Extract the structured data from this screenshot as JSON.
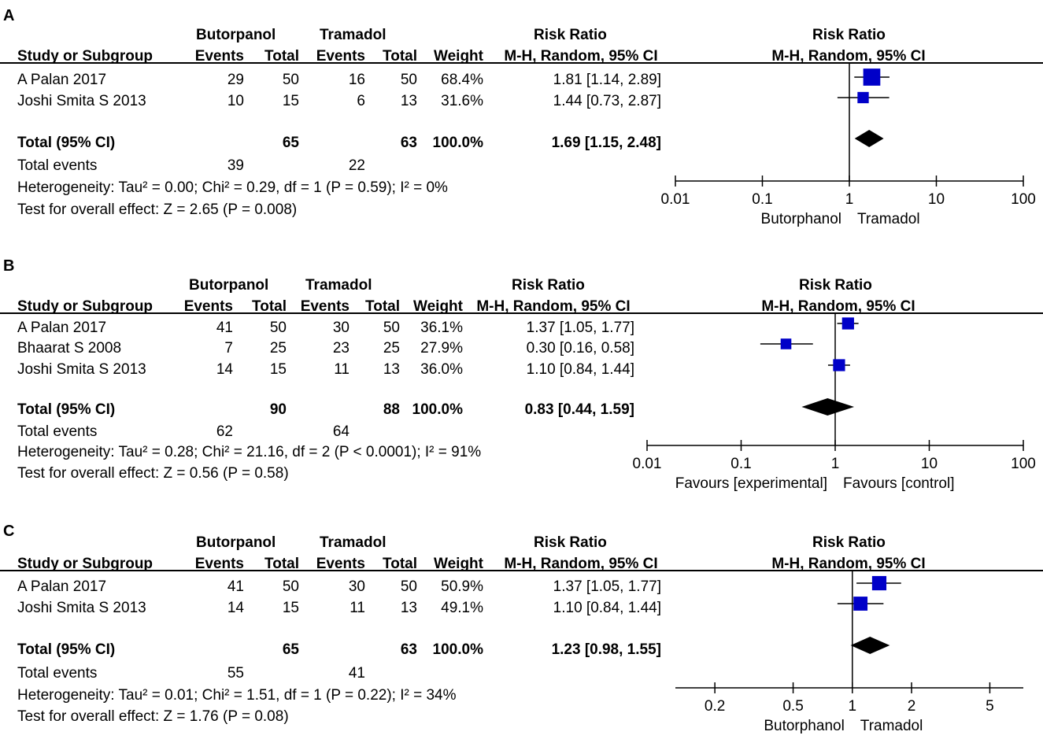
{
  "chart_data": [
    {
      "type": "forest",
      "panel_label": "A",
      "group1": "Butorpanol",
      "group2": "Tramadol",
      "col_study": "Study or Subgroup",
      "col_events": "Events",
      "col_total": "Total",
      "col_weight": "Weight",
      "col_rr_title": "Risk Ratio",
      "col_rr_sub": "M-H, Random, 95% CI",
      "plot_title": "Risk Ratio",
      "plot_sub": "M-H, Random, 95% CI",
      "studies": [
        {
          "name": "A Palan 2017",
          "e1": "29",
          "n1": "50",
          "e2": "16",
          "n2": "50",
          "weight": "68.4%",
          "ci": "1.81 [1.14, 2.89]",
          "rr": 1.81,
          "lo": 1.14,
          "hi": 2.89,
          "w": 68.4
        },
        {
          "name": "Joshi Smita S 2013",
          "e1": "10",
          "n1": "15",
          "e2": "6",
          "n2": "13",
          "weight": "31.6%",
          "ci": "1.44 [0.73, 2.87]",
          "rr": 1.44,
          "lo": 0.73,
          "hi": 2.87,
          "w": 31.6
        }
      ],
      "total": {
        "label": "Total (95% CI)",
        "n1": "65",
        "n2": "63",
        "weight": "100.0%",
        "ci": "1.69 [1.15, 2.48]",
        "rr": 1.69,
        "lo": 1.15,
        "hi": 2.48
      },
      "events": {
        "label": "Total events",
        "e1": "39",
        "e2": "22"
      },
      "heterogeneity": "Heterogeneity: Tau² = 0.00; Chi² = 0.29, df = 1 (P = 0.59); I² = 0%",
      "overall": "Test for overall effect: Z = 2.65 (P = 0.008)",
      "axis_ticks": [
        0.01,
        0.1,
        1,
        10,
        100
      ],
      "axis_tick_labels": [
        "0.01",
        "0.1",
        "1",
        "10",
        "100"
      ],
      "axis_range": [
        0.01,
        100
      ],
      "favours_left": "Butorphanol",
      "favours_right": "Tramadol"
    },
    {
      "type": "forest",
      "panel_label": "B",
      "group1": "Butorpanol",
      "group2": "Tramadol",
      "col_study": "Study or Subgroup",
      "col_events": "Events",
      "col_total": "Total",
      "col_weight": "Weight",
      "col_rr_title": "Risk Ratio",
      "col_rr_sub": "M-H, Random, 95% CI",
      "plot_title": "Risk Ratio",
      "plot_sub": "M-H, Random, 95% CI",
      "studies": [
        {
          "name": "A Palan 2017",
          "e1": "41",
          "n1": "50",
          "e2": "30",
          "n2": "50",
          "weight": "36.1%",
          "ci": "1.37 [1.05, 1.77]",
          "rr": 1.37,
          "lo": 1.05,
          "hi": 1.77,
          "w": 36.1
        },
        {
          "name": "Bhaarat S 2008",
          "e1": "7",
          "n1": "25",
          "e2": "23",
          "n2": "25",
          "weight": "27.9%",
          "ci": "0.30 [0.16, 0.58]",
          "rr": 0.3,
          "lo": 0.16,
          "hi": 0.58,
          "w": 27.9
        },
        {
          "name": "Joshi Smita S 2013",
          "e1": "14",
          "n1": "15",
          "e2": "11",
          "n2": "13",
          "weight": "36.0%",
          "ci": "1.10 [0.84, 1.44]",
          "rr": 1.1,
          "lo": 0.84,
          "hi": 1.44,
          "w": 36.0
        }
      ],
      "total": {
        "label": "Total (95% CI)",
        "n1": "90",
        "n2": "88",
        "weight": "100.0%",
        "ci": "0.83 [0.44, 1.59]",
        "rr": 0.83,
        "lo": 0.44,
        "hi": 1.59
      },
      "events": {
        "label": "Total events",
        "e1": "62",
        "e2": "64"
      },
      "heterogeneity": "Heterogeneity: Tau² = 0.28; Chi² = 21.16, df = 2 (P < 0.0001); I² = 91%",
      "overall": "Test for overall effect: Z = 0.56 (P = 0.58)",
      "axis_ticks": [
        0.01,
        0.1,
        1,
        10,
        100
      ],
      "axis_tick_labels": [
        "0.01",
        "0.1",
        "1",
        "10",
        "100"
      ],
      "axis_range": [
        0.01,
        100
      ],
      "favours_left": "Favours [experimental]",
      "favours_right": "Favours [control]"
    },
    {
      "type": "forest",
      "panel_label": "C",
      "group1": "Butorpanol",
      "group2": "Tramadol",
      "col_study": "Study or Subgroup",
      "col_events": "Events",
      "col_total": "Total",
      "col_weight": "Weight",
      "col_rr_title": "Risk Ratio",
      "col_rr_sub": "M-H, Random, 95% CI",
      "plot_title": "Risk Ratio",
      "plot_sub": "M-H, Random, 95% CI",
      "studies": [
        {
          "name": "A Palan 2017",
          "e1": "41",
          "n1": "50",
          "e2": "30",
          "n2": "50",
          "weight": "50.9%",
          "ci": "1.37 [1.05, 1.77]",
          "rr": 1.37,
          "lo": 1.05,
          "hi": 1.77,
          "w": 50.9
        },
        {
          "name": "Joshi Smita S 2013",
          "e1": "14",
          "n1": "15",
          "e2": "11",
          "n2": "13",
          "weight": "49.1%",
          "ci": "1.10 [0.84, 1.44]",
          "rr": 1.1,
          "lo": 0.84,
          "hi": 1.44,
          "w": 49.1
        }
      ],
      "total": {
        "label": "Total (95% CI)",
        "n1": "65",
        "n2": "63",
        "weight": "100.0%",
        "ci": "1.23 [0.98, 1.55]",
        "rr": 1.23,
        "lo": 0.98,
        "hi": 1.55
      },
      "events": {
        "label": "Total events",
        "e1": "55",
        "e2": "41"
      },
      "heterogeneity": "Heterogeneity: Tau² = 0.01; Chi² = 1.51, df = 1 (P = 0.22); I² = 34%",
      "overall": "Test for overall effect: Z = 1.76 (P = 0.08)",
      "axis_ticks": [
        0.2,
        0.5,
        1,
        2,
        5
      ],
      "axis_tick_labels": [
        "0.2",
        "0.5",
        "1",
        "2",
        "5"
      ],
      "axis_range": [
        0.126,
        7.4
      ],
      "favours_left": "Butorphanol",
      "favours_right": "Tramadol"
    }
  ],
  "colors": {
    "marker": "#0000c8",
    "line": "#000000"
  }
}
